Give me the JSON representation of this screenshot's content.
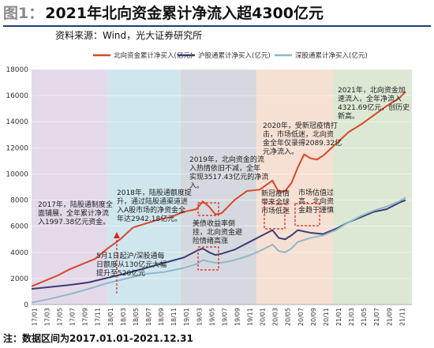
{
  "header": {
    "figure_label": "图1：",
    "title": "2021年北向资金累计净流入超4300亿元"
  },
  "source": "资料来源：Wind，光大证券研究所",
  "note": "注：数据区间为2017.01.01-2021.12.31",
  "colors": {
    "north": "#d9472b",
    "shanghai": "#3b3e73",
    "shenzhen": "#8fb7cc",
    "band_purple": "#e3d9e9",
    "band_blue": "#cfe6ee",
    "band_gray": "#d5d9df",
    "band_peach": "#f5e0d3",
    "band_green": "#dde8d4",
    "annotation_red": "#e02020"
  },
  "chart_data": {
    "type": "line",
    "ylim": [
      0,
      18000
    ],
    "yticks": [
      0,
      2000,
      4000,
      6000,
      8000,
      10000,
      12000,
      14000,
      16000,
      18000
    ],
    "x_tick_labels": [
      "17/01",
      "17/03",
      "17/05",
      "17/07",
      "17/09",
      "17/11",
      "18/01",
      "18/03",
      "18/05",
      "18/07",
      "18/09",
      "18/11",
      "19/01",
      "19/03",
      "19/05",
      "19/07",
      "19/09",
      "19/11",
      "20/01",
      "20/03",
      "20/05",
      "20/07",
      "20/09",
      "20/11",
      "21/01",
      "21/03",
      "21/05",
      "21/07",
      "21/09",
      "21/11"
    ],
    "legend": [
      "北向资金累计净买入(亿元)",
      "沪股通累计净买入(亿元)",
      "深股通累计净买入(亿元)"
    ],
    "series": [
      {
        "name": "北向资金累计净买入(亿元)",
        "x": [
          0,
          2,
          4,
          6,
          8,
          10,
          12,
          14,
          16,
          18,
          20,
          22,
          24,
          26,
          27,
          28,
          29,
          30,
          31,
          32,
          34,
          36,
          38,
          39,
          40,
          41,
          42,
          43,
          44,
          45,
          46,
          48,
          50,
          52,
          54,
          56,
          58,
          59
        ],
        "values": [
          1400,
          1800,
          2200,
          2700,
          3100,
          3500,
          4300,
          5000,
          5900,
          6200,
          6500,
          6700,
          7100,
          7300,
          7900,
          7500,
          6900,
          7000,
          7500,
          8000,
          8700,
          8800,
          9500,
          8600,
          8700,
          9300,
          10500,
          11500,
          11200,
          11100,
          11400,
          12300,
          13200,
          13800,
          14500,
          15200,
          15800,
          16300
        ]
      },
      {
        "name": "沪股通累计净买入(亿元)",
        "x": [
          0,
          3,
          6,
          9,
          12,
          15,
          18,
          21,
          24,
          26,
          27,
          28,
          29,
          30,
          32,
          34,
          36,
          38,
          39,
          40,
          41,
          42,
          44,
          46,
          48,
          50,
          52,
          54,
          56,
          58,
          59
        ],
        "values": [
          1200,
          1350,
          1500,
          1700,
          2050,
          2400,
          2800,
          3200,
          3600,
          4100,
          4300,
          4000,
          3800,
          3900,
          4200,
          4700,
          5200,
          5700,
          5100,
          5000,
          5300,
          5700,
          5500,
          5400,
          5800,
          6300,
          6700,
          7100,
          7300,
          7800,
          8000
        ]
      },
      {
        "name": "深股通累计净买入(亿元)",
        "x": [
          0,
          3,
          6,
          9,
          12,
          15,
          18,
          21,
          24,
          26,
          27,
          28,
          29,
          30,
          32,
          34,
          36,
          38,
          39,
          40,
          41,
          42,
          44,
          46,
          48,
          50,
          52,
          54,
          56,
          58,
          59
        ],
        "values": [
          150,
          450,
          800,
          1200,
          1650,
          2000,
          2350,
          2500,
          2800,
          3100,
          3400,
          3300,
          3200,
          3200,
          3400,
          3700,
          4100,
          4600,
          4100,
          4000,
          4300,
          4800,
          5100,
          5300,
          5700,
          6300,
          6800,
          7200,
          7500,
          7900,
          8200
        ]
      }
    ],
    "bands": [
      {
        "from": 0,
        "to": 12,
        "color": "band_purple"
      },
      {
        "from": 12,
        "to": 23.5,
        "color": "band_blue"
      },
      {
        "from": 23.5,
        "to": 35.5,
        "color": "band_gray"
      },
      {
        "from": 35.5,
        "to": 47.5,
        "color": "band_peach"
      },
      {
        "from": 47.5,
        "to": 60,
        "color": "band_green"
      }
    ],
    "annotations": [
      {
        "lines": [
          "2017年，陆股通制度全",
          "面铺展，全年累计净流",
          "入1997.38亿元资金。"
        ]
      },
      {
        "lines": [
          "2018年，陆股通额度提",
          "升，通过陆股通渠道进",
          "入A股市场的净资金全",
          "年达2942.18亿元。"
        ]
      },
      {
        "lines": [
          "5月1日起沪/深股通每",
          "日额度从130亿元大幅",
          "提升至520亿元"
        ]
      },
      {
        "lines": [
          "2019年，北向资金的流",
          "入热情依旧不减，全年",
          "实现3517.43亿元的净流",
          "入。"
        ]
      },
      {
        "lines": [
          "美债收益率倒",
          "挂，北向资金避",
          "险情绪高涨"
        ]
      },
      {
        "lines": [
          "2020年，受新冠疫情打",
          "击，市场低迷，北向资",
          "金全年仅录得2089.32亿",
          "元净流入。"
        ]
      },
      {
        "lines": [
          "新冠疫情",
          "带来全球",
          "市场低迷"
        ]
      },
      {
        "lines": [
          "市场估值过",
          "高，北向资",
          "金趋于谨慎"
        ]
      },
      {
        "lines": [
          "2021年，北向资金加",
          "速流入，全年净流入",
          "4321.69亿元，创历史",
          "新高。"
        ]
      }
    ]
  }
}
